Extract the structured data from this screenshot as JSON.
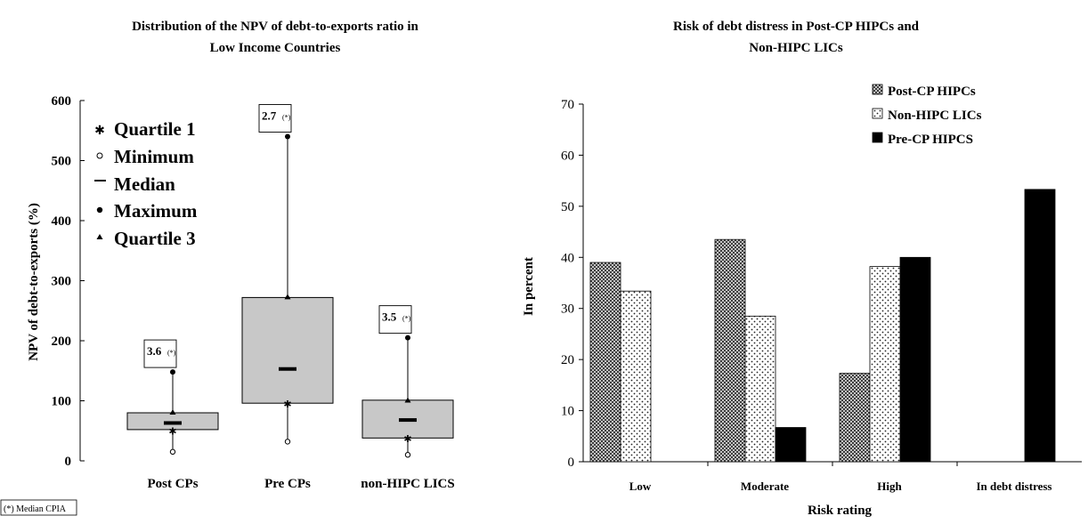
{
  "chart_data": [
    {
      "type": "box",
      "title_line1": "Distribution of the NPV of debt-to-exports ratio in",
      "title_line2": "Low Income Countries",
      "ylabel": "NPV of debt-to-exports (%)",
      "xlabel": "",
      "ylim": [
        0,
        600
      ],
      "yticks": [
        "0",
        "100",
        "200",
        "300",
        "400",
        "500",
        "600"
      ],
      "categories": [
        "Post CPs",
        "Pre CPs",
        "non-HIPC LICS"
      ],
      "boxes": [
        {
          "min": 15,
          "q1": 50,
          "median": 63,
          "q3": 80,
          "max": 148,
          "box_low": 52,
          "box_high": 80,
          "cpia": "3.6",
          "cpia_note": "(*)"
        },
        {
          "min": 32,
          "q1": 95,
          "median": 153,
          "q3": 272,
          "max": 540,
          "box_low": 96,
          "box_high": 272,
          "cpia": "2.7",
          "cpia_note": "(*)"
        },
        {
          "min": 10,
          "q1": 37,
          "median": 68,
          "q3": 100,
          "max": 205,
          "box_low": 38,
          "box_high": 101,
          "cpia": "3.5",
          "cpia_note": "(*)"
        }
      ],
      "legend": [
        {
          "label": "Quartile 1",
          "marker": "star"
        },
        {
          "label": "Minimum",
          "marker": "open-circle"
        },
        {
          "label": "Median",
          "marker": "dash"
        },
        {
          "label": "Maximum",
          "marker": "filled-circle"
        },
        {
          "label": "Quartile 3",
          "marker": "triangle"
        }
      ],
      "footnote": "(*) Median CPIA",
      "box_color": "#c8c8c8"
    },
    {
      "type": "bar",
      "title_line1": "Risk of debt distress in Post-CP HIPCs and",
      "title_line2": "Non-HIPC LICs",
      "xlabel": "Risk rating",
      "ylabel": "In percent",
      "ylim": [
        0,
        70
      ],
      "yticks": [
        "0",
        "10",
        "20",
        "30",
        "40",
        "50",
        "60",
        "70"
      ],
      "categories": [
        "Low",
        "Moderate",
        "High",
        "In debt distress"
      ],
      "series": [
        {
          "name": "Post-CP HIPCs",
          "values": [
            39,
            43.5,
            17.3,
            0
          ],
          "pattern": "crosshatch"
        },
        {
          "name": "Non-HIPC LICs",
          "values": [
            33.4,
            28.5,
            38.2,
            0
          ],
          "pattern": "dots"
        },
        {
          "name": "Pre-CP HIPCS",
          "values": [
            0,
            6.7,
            40,
            53.3
          ],
          "pattern": "solid"
        }
      ]
    }
  ]
}
